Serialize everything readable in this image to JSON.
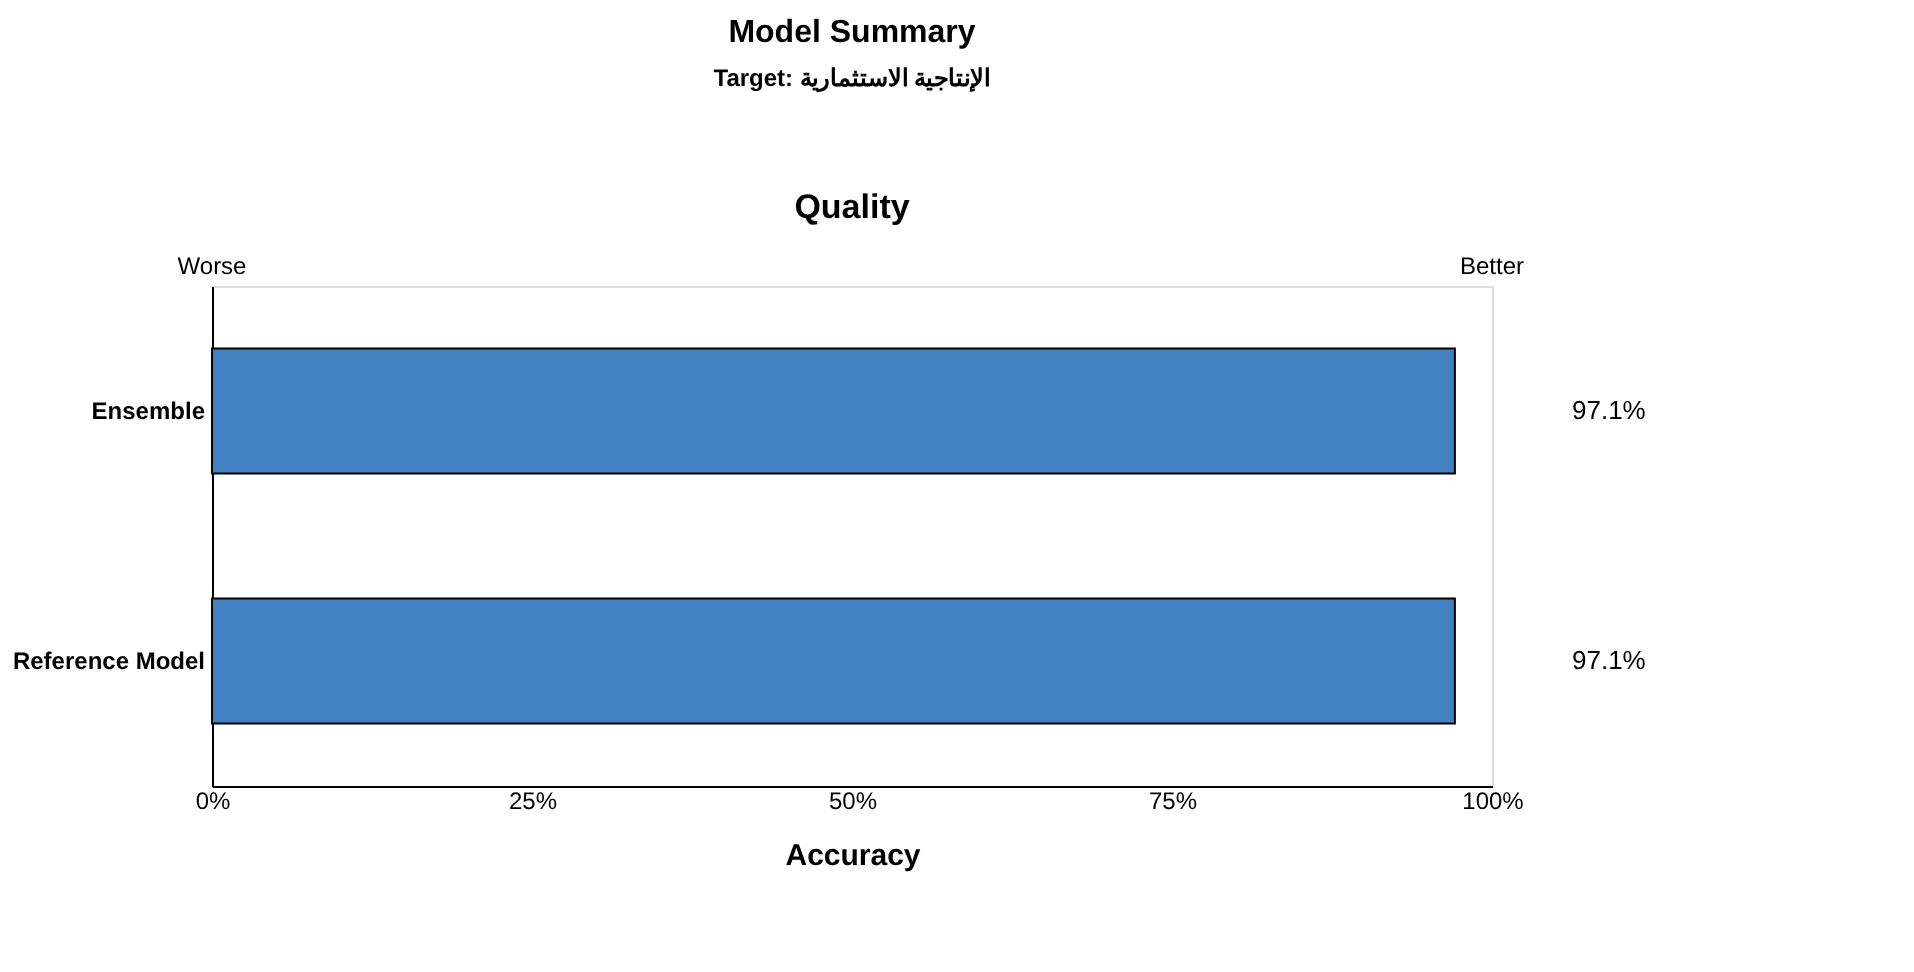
{
  "chart_data": {
    "type": "bar",
    "orientation": "horizontal",
    "title": "Model Summary",
    "subtitle": "Target: الإنتاجية الاستثمارية",
    "xlabel": "Accuracy",
    "categories": [
      "Ensemble",
      "Reference Model"
    ],
    "values": [
      97.1,
      97.1
    ],
    "color": "#4382c2",
    "value_labels": [
      "97.1%",
      "97.1%"
    ],
    "xlim": [
      0,
      100
    ],
    "xticks": [
      {
        "value": 0,
        "label": "0%"
      },
      {
        "value": 25,
        "label": "25%"
      },
      {
        "value": 50,
        "label": "50%"
      },
      {
        "value": 75,
        "label": "75%"
      },
      {
        "value": 100,
        "label": "100%"
      }
    ],
    "annotations": [
      "Quality",
      "Worse",
      "Better"
    ],
    "grid": false
  }
}
